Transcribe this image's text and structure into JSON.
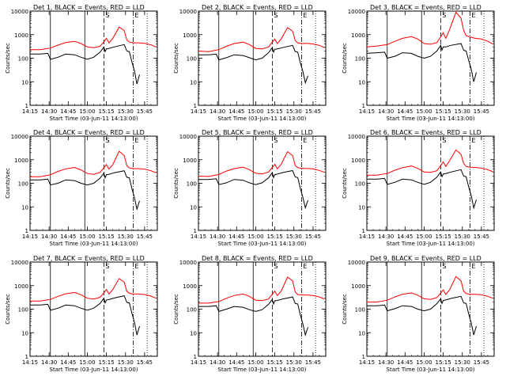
{
  "chart_data": {
    "type": "line",
    "y_scale": "log",
    "ylim": [
      1,
      10000
    ],
    "y_ticks": [
      1,
      10,
      100,
      1000,
      10000
    ],
    "y_tick_labels": [
      "1",
      "10",
      "100",
      "1000",
      "10000"
    ],
    "ylabel": "Counts/sec",
    "xlim_minutes": [
      0,
      100
    ],
    "x_ticks_minutes": [
      0,
      15,
      30,
      45,
      60,
      75,
      90
    ],
    "x_tick_labels": [
      "14:15",
      "14:30",
      "14:45",
      "15:00",
      "15:15",
      "15:30",
      "15:45"
    ],
    "xlabel": "Start Time (03-Jun-11 14:13:00)",
    "legend_text": "BLACK = Events, RED = LLD",
    "marker_lines": [
      {
        "x_min": 16,
        "style": "solid",
        "label": ""
      },
      {
        "x_min": 43,
        "style": "solid",
        "label": ""
      },
      {
        "x_min": 58,
        "style": "dashed",
        "label": "S"
      },
      {
        "x_min": 81,
        "style": "dashdot",
        "label": "E"
      },
      {
        "x_min": 92,
        "style": "dotted",
        "label": ""
      }
    ],
    "panels": [
      {
        "title": "Det 1",
        "series": [
          {
            "name": "LLD",
            "color": "#ff0000",
            "x": [
              0,
              8,
              16,
              22,
              28,
              35,
              40,
              45,
              50,
              55,
              58,
              60,
              62,
              65,
              70,
              74,
              76,
              78,
              81,
              85,
              90,
              95,
              99
            ],
            "y": [
              230,
              230,
              270,
              360,
              460,
              520,
              420,
              300,
              280,
              320,
              500,
              700,
              450,
              700,
              2100,
              1500,
              600,
              480,
              450,
              450,
              430,
              370,
              300
            ]
          },
          {
            "name": "Events",
            "color": "#000000",
            "x": [
              0,
              8,
              14,
              16,
              22,
              28,
              35,
              40,
              45,
              50,
              55,
              58,
              59,
              60,
              62,
              66,
              74,
              76,
              78,
              80,
              82,
              84,
              86
            ],
            "y": [
              150,
              150,
              160,
              90,
              110,
              150,
              140,
              110,
              90,
              110,
              180,
              300,
              190,
              250,
              260,
              300,
              380,
              200,
              190,
              70,
              30,
              8,
              20
            ]
          }
        ]
      },
      {
        "title": "Det 2",
        "series": [
          {
            "name": "LLD",
            "color": "#ff0000",
            "x": [
              0,
              8,
              16,
              22,
              28,
              35,
              40,
              45,
              50,
              55,
              58,
              60,
              62,
              65,
              70,
              74,
              76,
              78,
              81,
              85,
              90,
              95,
              99
            ],
            "y": [
              200,
              190,
              230,
              320,
              420,
              480,
              380,
              260,
              250,
              300,
              480,
              650,
              420,
              650,
              2000,
              1400,
              560,
              450,
              420,
              430,
              400,
              350,
              280
            ]
          },
          {
            "name": "Events",
            "color": "#000000",
            "x": [
              0,
              8,
              14,
              16,
              22,
              28,
              35,
              40,
              45,
              50,
              55,
              58,
              59,
              60,
              62,
              66,
              74,
              76,
              78,
              80,
              82,
              84,
              86
            ],
            "y": [
              140,
              140,
              150,
              85,
              105,
              140,
              130,
              105,
              85,
              100,
              170,
              280,
              180,
              240,
              250,
              280,
              350,
              190,
              180,
              65,
              28,
              9,
              18
            ]
          }
        ]
      },
      {
        "title": "Det 3",
        "series": [
          {
            "name": "LLD",
            "color": "#ff0000",
            "x": [
              0,
              8,
              16,
              22,
              28,
              35,
              40,
              45,
              50,
              55,
              58,
              60,
              62,
              65,
              70,
              74,
              76,
              78,
              81,
              85,
              90,
              95,
              99
            ],
            "y": [
              300,
              330,
              380,
              520,
              700,
              820,
              650,
              420,
              390,
              460,
              800,
              1200,
              700,
              1600,
              9000,
              5000,
              1500,
              900,
              800,
              700,
              650,
              520,
              400
            ]
          },
          {
            "name": "Events",
            "color": "#000000",
            "x": [
              0,
              8,
              14,
              16,
              22,
              28,
              35,
              40,
              45,
              50,
              55,
              58,
              59,
              60,
              62,
              66,
              74,
              76,
              78,
              80,
              82,
              84,
              86
            ],
            "y": [
              160,
              170,
              180,
              100,
              120,
              170,
              160,
              120,
              100,
              120,
              200,
              350,
              220,
              300,
              300,
              350,
              420,
              220,
              200,
              80,
              35,
              10,
              25
            ]
          }
        ]
      },
      {
        "title": "Det 4",
        "series": [
          {
            "name": "LLD",
            "color": "#ff0000",
            "x": [
              0,
              8,
              16,
              22,
              28,
              35,
              40,
              45,
              50,
              55,
              58,
              60,
              62,
              65,
              70,
              74,
              76,
              78,
              81,
              85,
              90,
              95,
              99
            ],
            "y": [
              190,
              190,
              230,
              320,
              410,
              470,
              370,
              260,
              240,
              290,
              460,
              620,
              400,
              620,
              2300,
              1500,
              560,
              450,
              420,
              420,
              400,
              340,
              280
            ]
          },
          {
            "name": "Events",
            "color": "#000000",
            "x": [
              0,
              8,
              14,
              16,
              22,
              28,
              35,
              40,
              45,
              50,
              55,
              58,
              59,
              60,
              62,
              66,
              74,
              76,
              78,
              80,
              82,
              84,
              86
            ],
            "y": [
              140,
              140,
              150,
              85,
              100,
              140,
              130,
              100,
              85,
              100,
              165,
              270,
              170,
              230,
              240,
              280,
              340,
              180,
              170,
              60,
              25,
              8,
              18
            ]
          }
        ]
      },
      {
        "title": "Det 5",
        "series": [
          {
            "name": "LLD",
            "color": "#ff0000",
            "x": [
              0,
              8,
              16,
              22,
              28,
              35,
              40,
              45,
              50,
              55,
              58,
              60,
              62,
              65,
              70,
              74,
              76,
              78,
              81,
              85,
              90,
              95,
              99
            ],
            "y": [
              200,
              195,
              235,
              330,
              420,
              480,
              380,
              265,
              250,
              300,
              470,
              640,
              410,
              640,
              2200,
              1500,
              570,
              460,
              430,
              430,
              410,
              350,
              290
            ]
          },
          {
            "name": "Events",
            "color": "#000000",
            "x": [
              0,
              8,
              14,
              16,
              22,
              28,
              35,
              40,
              45,
              50,
              55,
              58,
              59,
              60,
              62,
              66,
              74,
              76,
              78,
              80,
              82,
              84,
              86
            ],
            "y": [
              145,
              145,
              155,
              88,
              105,
              145,
              135,
              105,
              88,
              105,
              170,
              280,
              175,
              235,
              245,
              285,
              345,
              185,
              175,
              62,
              26,
              9,
              19
            ]
          }
        ]
      },
      {
        "title": "Det 6",
        "series": [
          {
            "name": "LLD",
            "color": "#ff0000",
            "x": [
              0,
              8,
              16,
              22,
              28,
              35,
              40,
              45,
              50,
              55,
              58,
              60,
              62,
              65,
              70,
              74,
              76,
              78,
              81,
              85,
              90,
              95,
              99
            ],
            "y": [
              220,
              220,
              260,
              360,
              460,
              540,
              430,
              300,
              290,
              340,
              560,
              800,
              520,
              900,
              2600,
              1700,
              700,
              520,
              480,
              470,
              440,
              380,
              310
            ]
          },
          {
            "name": "Events",
            "color": "#000000",
            "x": [
              0,
              8,
              14,
              16,
              22,
              28,
              35,
              40,
              45,
              50,
              55,
              58,
              59,
              60,
              62,
              66,
              74,
              76,
              78,
              80,
              82,
              84,
              86
            ],
            "y": [
              150,
              150,
              160,
              90,
              110,
              150,
              140,
              110,
              90,
              110,
              180,
              300,
              190,
              250,
              260,
              300,
              380,
              200,
              190,
              70,
              30,
              9,
              20
            ]
          }
        ]
      },
      {
        "title": "Det 7",
        "series": [
          {
            "name": "LLD",
            "color": "#ff0000",
            "x": [
              0,
              8,
              16,
              22,
              28,
              35,
              40,
              45,
              50,
              55,
              58,
              60,
              62,
              65,
              70,
              74,
              76,
              78,
              81,
              85,
              90,
              95,
              99
            ],
            "y": [
              220,
              220,
              260,
              350,
              450,
              510,
              410,
              290,
              270,
              320,
              490,
              680,
              440,
              680,
              2000,
              1400,
              580,
              470,
              440,
              440,
              420,
              360,
              290
            ]
          },
          {
            "name": "Events",
            "color": "#000000",
            "x": [
              0,
              8,
              14,
              16,
              22,
              28,
              35,
              40,
              45,
              50,
              55,
              58,
              59,
              60,
              62,
              66,
              74,
              76,
              78,
              80,
              82,
              84,
              86
            ],
            "y": [
              150,
              150,
              160,
              90,
              110,
              150,
              140,
              110,
              90,
              110,
              175,
              290,
              185,
              245,
              255,
              295,
              370,
              195,
              185,
              68,
              28,
              8,
              19
            ]
          }
        ]
      },
      {
        "title": "Det 8",
        "series": [
          {
            "name": "LLD",
            "color": "#ff0000",
            "x": [
              0,
              8,
              16,
              22,
              28,
              35,
              40,
              45,
              50,
              55,
              58,
              60,
              62,
              65,
              70,
              74,
              76,
              78,
              81,
              85,
              90,
              95,
              99
            ],
            "y": [
              180,
              180,
              210,
              290,
              380,
              440,
              350,
              240,
              230,
              270,
              430,
              580,
              380,
              580,
              2300,
              1600,
              540,
              420,
              400,
              400,
              380,
              330,
              270
            ]
          },
          {
            "name": "Events",
            "color": "#000000",
            "x": [
              0,
              8,
              14,
              16,
              22,
              28,
              35,
              40,
              45,
              50,
              55,
              58,
              59,
              60,
              62,
              66,
              74,
              76,
              78,
              80,
              82,
              84,
              86
            ],
            "y": [
              130,
              130,
              140,
              80,
              100,
              130,
              120,
              95,
              80,
              95,
              160,
              260,
              165,
              225,
              235,
              270,
              330,
              175,
              165,
              58,
              24,
              8,
              17
            ]
          }
        ]
      },
      {
        "title": "Det 9",
        "series": [
          {
            "name": "LLD",
            "color": "#ff0000",
            "x": [
              0,
              8,
              16,
              22,
              28,
              35,
              40,
              45,
              50,
              55,
              58,
              60,
              62,
              65,
              70,
              74,
              76,
              78,
              81,
              85,
              90,
              95,
              99
            ],
            "y": [
              200,
              200,
              240,
              330,
              430,
              490,
              390,
              275,
              260,
              310,
              480,
              660,
              420,
              660,
              2400,
              1600,
              580,
              460,
              430,
              430,
              410,
              350,
              290
            ]
          },
          {
            "name": "Events",
            "color": "#000000",
            "x": [
              0,
              8,
              14,
              16,
              22,
              28,
              35,
              40,
              45,
              50,
              55,
              58,
              59,
              60,
              62,
              66,
              74,
              76,
              78,
              80,
              82,
              84,
              86
            ],
            "y": [
              140,
              140,
              150,
              85,
              105,
              140,
              130,
              100,
              85,
              100,
              170,
              275,
              175,
              235,
              245,
              285,
              350,
              185,
              175,
              63,
              26,
              8,
              19
            ]
          }
        ]
      }
    ]
  }
}
